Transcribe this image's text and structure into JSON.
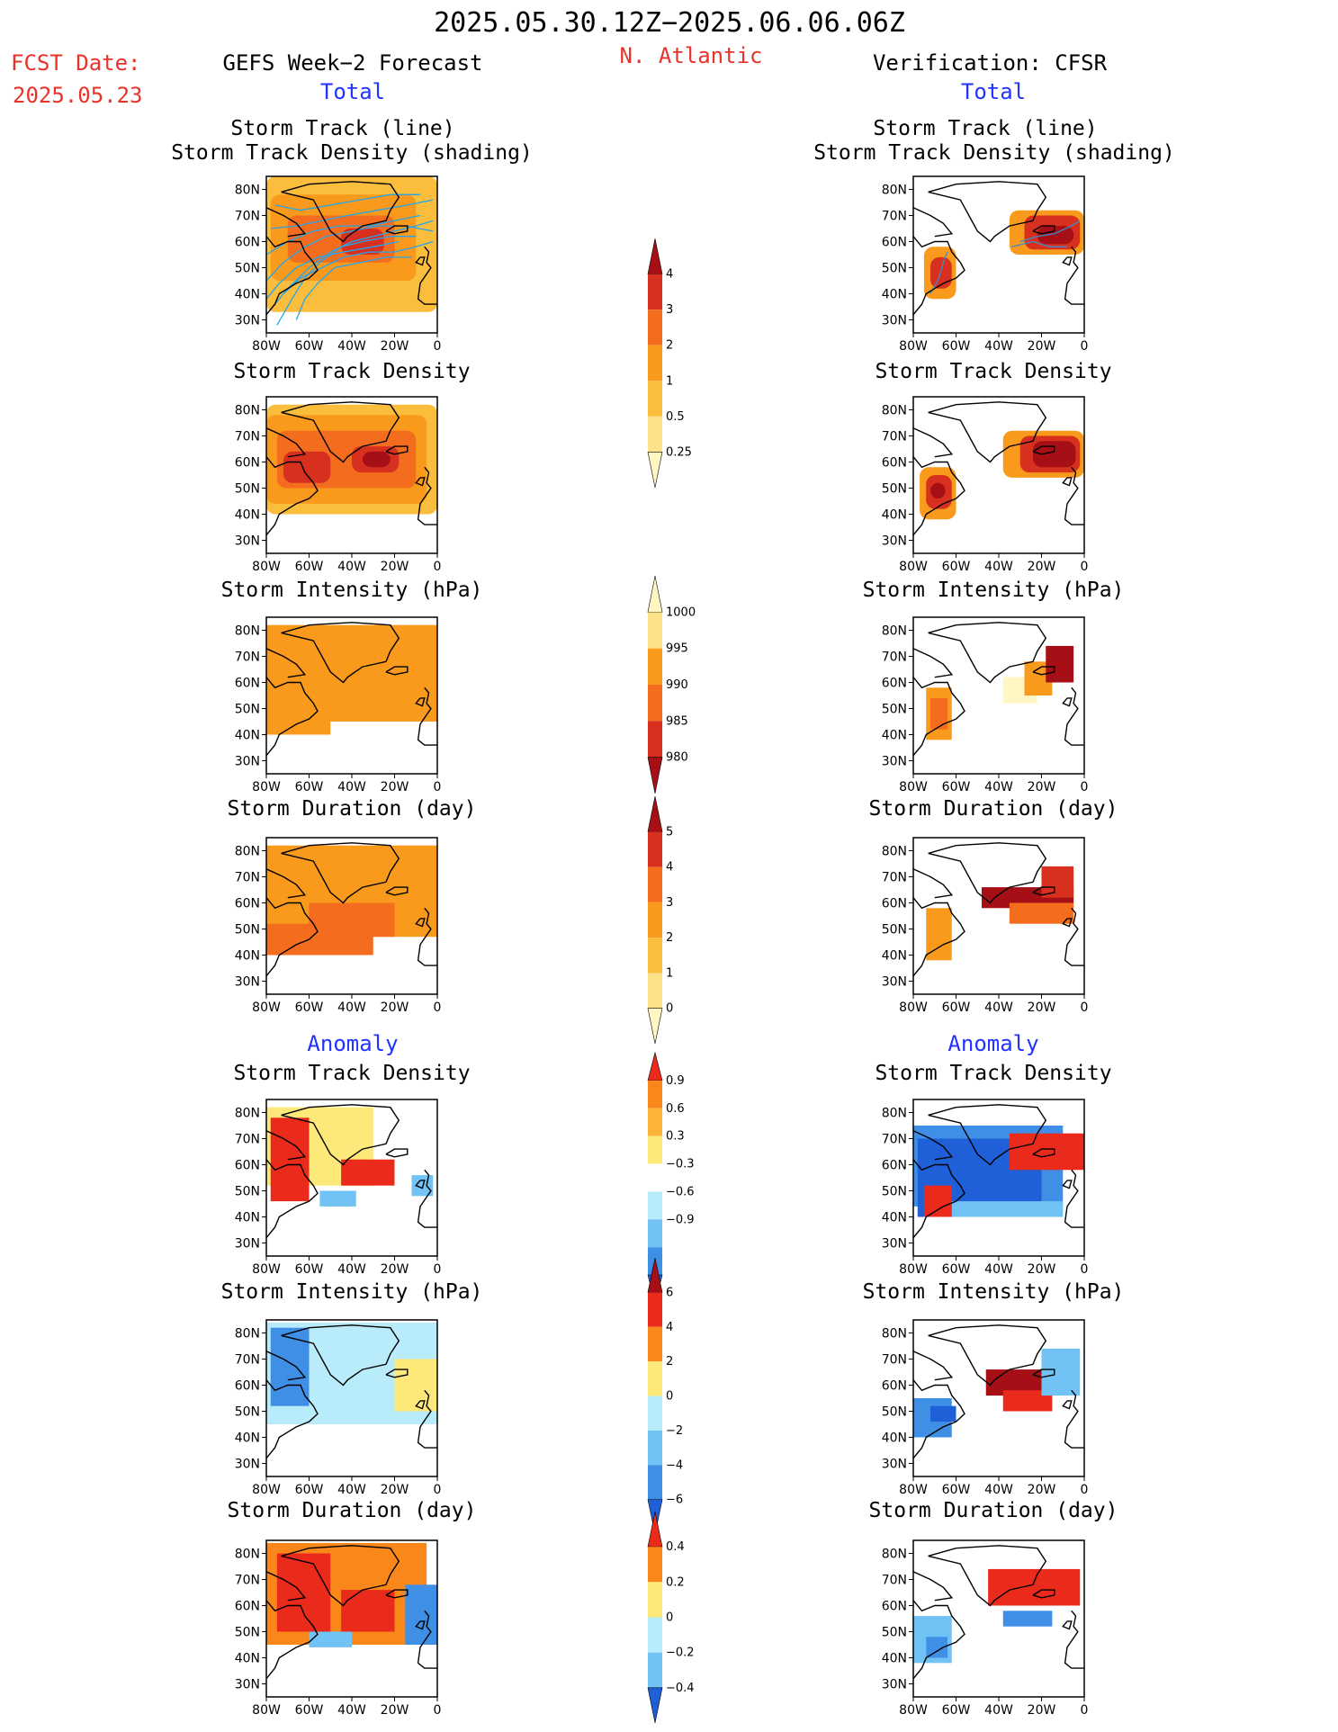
{
  "header": {
    "date_range": "2025.05.30.12Z−2025.06.06.06Z",
    "fcst_label": "FCST Date:",
    "fcst_date": "2025.05.23",
    "model_title": "GEFS Week−2 Forecast",
    "region": "N. Atlantic",
    "verification_title": "Verification: CFSR",
    "section_total": "Total",
    "section_anomaly": "Anomaly"
  },
  "panel_titles": {
    "track_line": "Storm Track (line)",
    "track_density_shading": "Storm Track Density (shading)",
    "track_density": "Storm Track Density",
    "intensity": "Storm Intensity (hPa)",
    "duration": "Storm Duration (day)"
  },
  "chart_data": [
    {
      "type": "heatmap",
      "columns": [
        "GEFS Week−2 Forecast",
        "Verification: CFSR"
      ],
      "rows": [
        "Total: Storm Track (line) / Storm Track Density (shading)",
        "Total: Storm Track Density",
        "Total: Storm Intensity (hPa)",
        "Total: Storm Duration (day)",
        "Anomaly: Storm Track Density",
        "Anomaly: Storm Intensity (hPa)",
        "Anomaly: Storm Duration (day)"
      ],
      "x_ticks": [
        "80W",
        "60W",
        "40W",
        "20W",
        "0"
      ],
      "y_ticks": [
        "80N",
        "70N",
        "60N",
        "50N",
        "40N",
        "30N"
      ],
      "xlim": [
        -80,
        0
      ],
      "ylim": [
        25,
        85
      ]
    }
  ],
  "colorbars": [
    {
      "id": "track_density",
      "labels": [
        "4",
        "3",
        "2",
        "1",
        "0.5",
        "0.25"
      ],
      "colors": [
        "#a50f15",
        "#d7301f",
        "#f46d1f",
        "#f99a1c",
        "#fbbd3c",
        "#fde28a",
        "#fff6c2"
      ]
    },
    {
      "id": "intensity",
      "labels": [
        "1000",
        "995",
        "990",
        "985",
        "980"
      ],
      "colors": [
        "#fff6c2",
        "#fde28a",
        "#f99a1c",
        "#f46d1f",
        "#d7301f",
        "#a50f15"
      ]
    },
    {
      "id": "duration",
      "labels": [
        "5",
        "4",
        "3",
        "2",
        "1",
        "0"
      ],
      "colors": [
        "#a50f15",
        "#d7301f",
        "#f46d1f",
        "#f99a1c",
        "#fbbd3c",
        "#fde28a",
        "#fff6c2"
      ]
    },
    {
      "id": "anom_density",
      "labels": [
        "0.9",
        "0.6",
        "0.3",
        "−0.3",
        "−0.6",
        "−0.9"
      ],
      "colors": [
        "#ea2a1a",
        "#f9871a",
        "#fbb338",
        "#fde97a",
        "#ffffff",
        "#b9ecfb",
        "#72c3f5",
        "#3f8fe6",
        "#1f5fd8"
      ]
    },
    {
      "id": "anom_intensity",
      "labels": [
        "6",
        "4",
        "2",
        "0",
        "−2",
        "−4",
        "−6"
      ],
      "colors": [
        "#a50f15",
        "#ea2a1a",
        "#f9871a",
        "#fde97a",
        "#b9ecfb",
        "#72c3f5",
        "#3f8fe6",
        "#1f5fd8"
      ]
    },
    {
      "id": "anom_duration",
      "labels": [
        "0.4",
        "0.2",
        "0",
        "−0.2",
        "−0.4"
      ],
      "colors": [
        "#ea2a1a",
        "#f9871a",
        "#fde97a",
        "#b9ecfb",
        "#72c3f5",
        "#1f5fd8"
      ]
    }
  ]
}
